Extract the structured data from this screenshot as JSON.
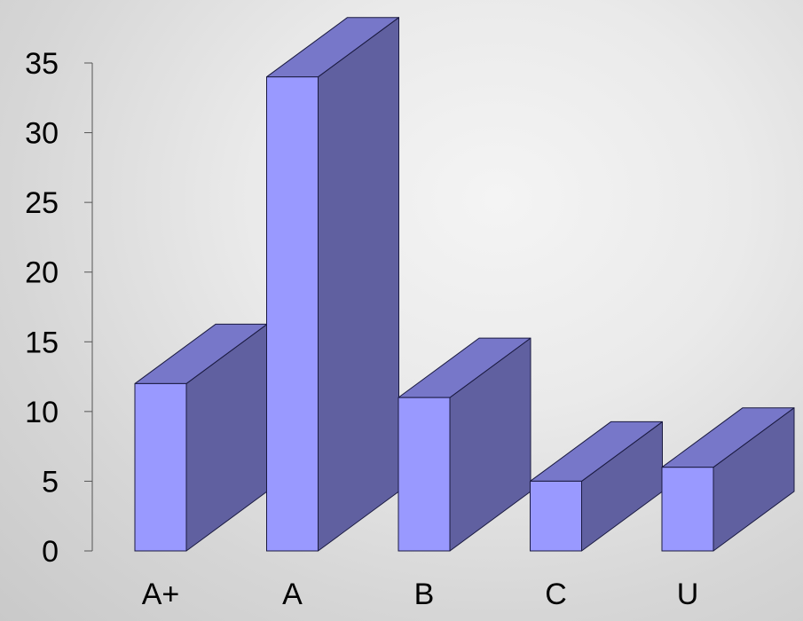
{
  "chart_data": {
    "type": "bar",
    "title": "",
    "xlabel": "",
    "ylabel": "",
    "categories": [
      "A+",
      "A",
      "B",
      "C",
      "U"
    ],
    "values": [
      12,
      34,
      11,
      5,
      6
    ],
    "ylim": [
      0,
      35
    ],
    "yticks": [
      0,
      5,
      10,
      15,
      20,
      25,
      30,
      35
    ],
    "grid": false,
    "legend": "none",
    "style": "3d-bars"
  },
  "colors": {
    "bar_front": "#9999ff",
    "bar_side": "#6060a0",
    "bar_top": "#7777c9",
    "axis": "#555555",
    "outline": "#1a1a40"
  }
}
